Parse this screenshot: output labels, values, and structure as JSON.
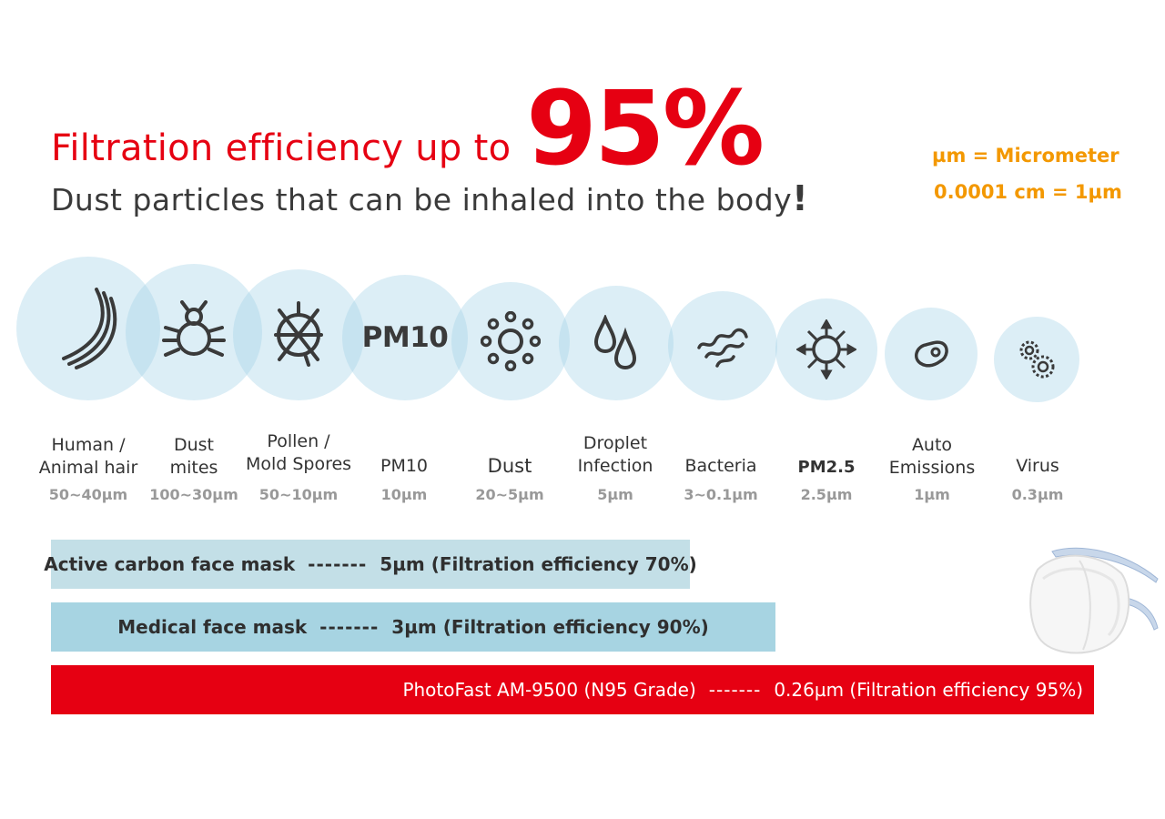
{
  "header": {
    "title_prefix": "Filtration efficiency up to",
    "title_highlight": "95%",
    "subtitle": "Dust particles that can be inhaled into the body",
    "subtitle_mark": "!"
  },
  "units": {
    "line1": "µm = Micrometer",
    "line2": "0.0001 cm = 1µm"
  },
  "particles": [
    {
      "label_line1": "Human /",
      "label_line2": "Animal hair",
      "size": "50~40µm",
      "icon": "hair-icon"
    },
    {
      "label_line1": "Dust",
      "label_line2": "mites",
      "size": "100~30µm",
      "icon": "dust-mite-icon"
    },
    {
      "label_line1": "Pollen /",
      "label_line2": "Mold Spores",
      "size": "50~10µm",
      "icon": "pollen-icon"
    },
    {
      "label_line1": "PM10",
      "label_line2": "",
      "size": "10µm",
      "icon": "pm10-text",
      "icon_text": "PM10"
    },
    {
      "label_line1": "Dust",
      "label_line2": "",
      "size": "20~5µm",
      "icon": "dust-icon"
    },
    {
      "label_line1": "Droplet",
      "label_line2": "Infection",
      "size": "5µm",
      "icon": "droplet-icon"
    },
    {
      "label_line1": "Bacteria",
      "label_line2": "",
      "size": "3~0.1µm",
      "icon": "bacteria-icon"
    },
    {
      "label_line1": "PM2.5",
      "label_line2": "",
      "size": "2.5µm",
      "icon": "pm25-icon"
    },
    {
      "label_line1": "Auto",
      "label_line2": "Emissions",
      "size": "1µm",
      "icon": "emission-icon"
    },
    {
      "label_line1": "Virus",
      "label_line2": "",
      "size": "0.3µm",
      "icon": "virus-icon"
    }
  ],
  "masks": [
    {
      "name": "Active carbon face mask",
      "dashes": "-------",
      "spec": "5µm (Filtration efficiency 70%)",
      "color": "#c3dfe7",
      "filter_size_um": 5,
      "efficiency_pct": 70
    },
    {
      "name": "Medical face mask",
      "dashes": "-------",
      "spec": "3µm (Filtration efficiency 90%)",
      "color": "#a7d4e2",
      "filter_size_um": 3,
      "efficiency_pct": 90
    },
    {
      "name": "PhotoFast AM-9500 (N95 Grade)",
      "dashes": "-------",
      "spec": "0.26µm (Filtration efficiency 95%)",
      "color": "#e60012",
      "filter_size_um": 0.26,
      "efficiency_pct": 95
    }
  ],
  "colors": {
    "accent": "#e60012",
    "unit_text": "#f39800",
    "circle": "#a4d2e8"
  }
}
